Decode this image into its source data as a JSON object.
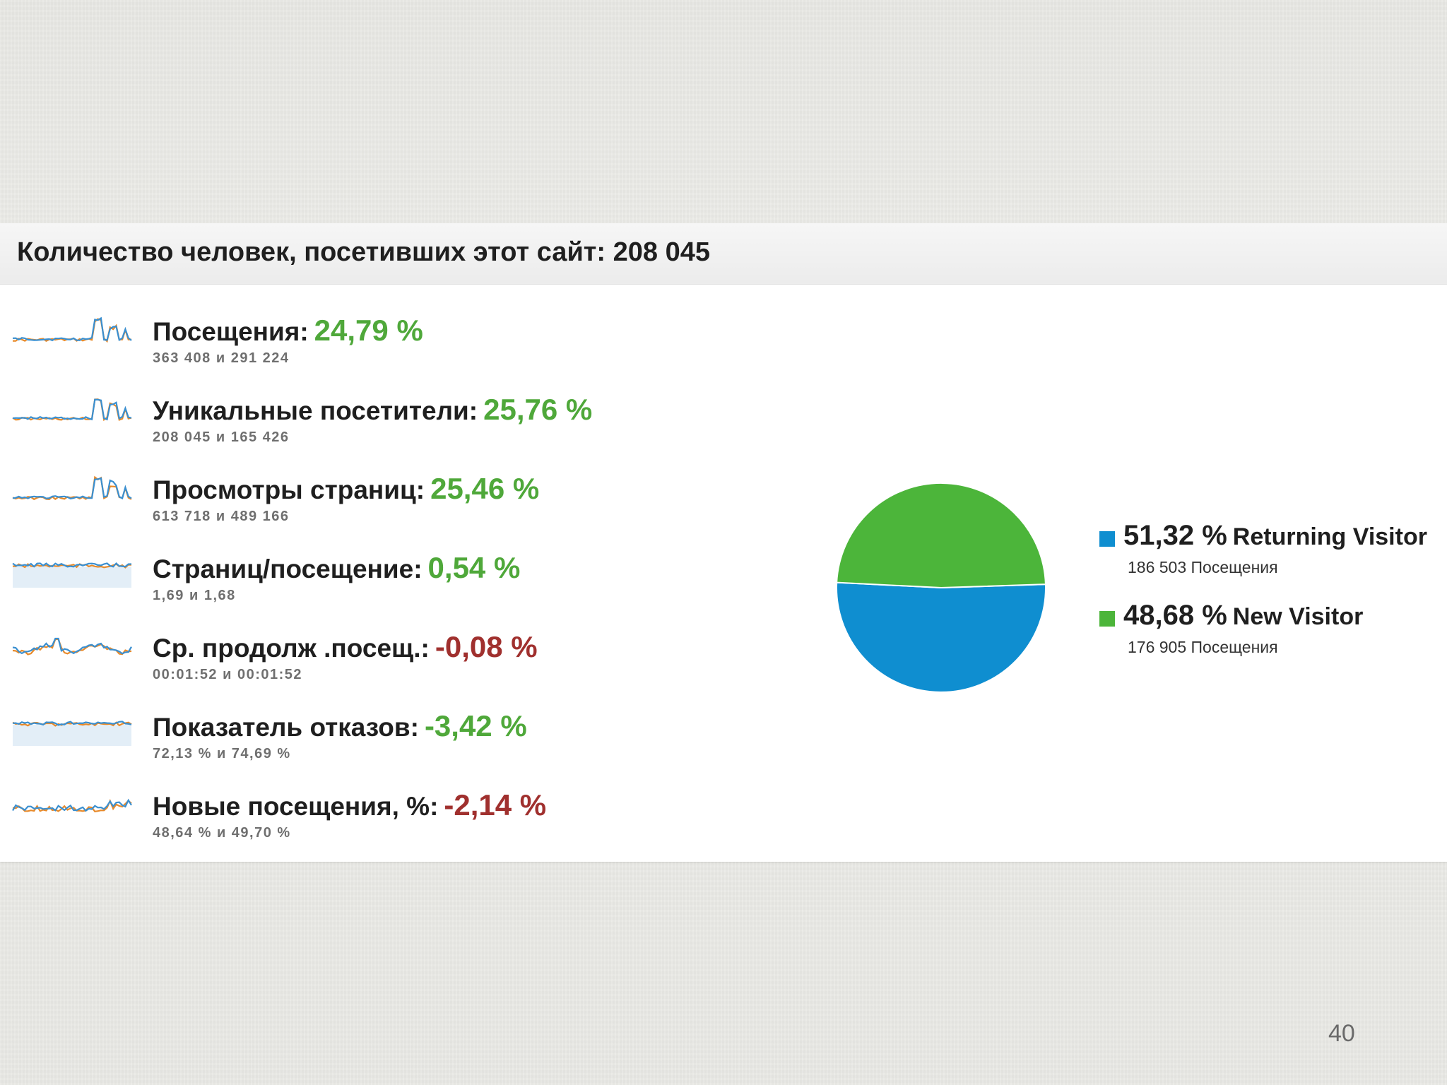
{
  "header": {
    "title": "Количество человек, посетивших этот сайт: 208 045"
  },
  "metrics": [
    {
      "label": "Посещения:",
      "value": "24,79 %",
      "sub": "363 408 и 291 224",
      "trend": "positive",
      "spark": "spiky"
    },
    {
      "label": "Уникальные посетители:",
      "value": "25,76 %",
      "sub": "208 045 и 165 426",
      "trend": "positive",
      "spark": "spiky"
    },
    {
      "label": "Просмотры страниц:",
      "value": "25,46 %",
      "sub": "613 718 и 489 166",
      "trend": "positive",
      "spark": "spiky"
    },
    {
      "label": "Страниц/посещение:",
      "value": "0,54 %",
      "sub": "1,69 и 1,68",
      "trend": "positive",
      "spark": "flat"
    },
    {
      "label": "Ср. продолж .посещ.:",
      "value": "-0,08 %",
      "sub": "00:01:52 и 00:01:52",
      "trend": "negative",
      "spark": "wavy"
    },
    {
      "label": "Показатель отказов:",
      "value": "-3,42 %",
      "sub": "72,13 % и 74,69 %",
      "trend": "positive",
      "spark": "flat"
    },
    {
      "label": "Новые посещения, %:",
      "value": "-2,14 %",
      "sub": "48,64 % и 49,70 %",
      "trend": "negative",
      "spark": "noisy"
    }
  ],
  "legend": [
    {
      "percent": "51,32 %",
      "name": "Returning Visitor",
      "sub": "186 503 Посещения",
      "color": "#0f8ed0"
    },
    {
      "percent": "48,68 %",
      "name": "New Visitor",
      "sub": "176 905 Посещения",
      "color": "#4cb53a"
    }
  ],
  "chart_data": {
    "type": "pie",
    "labels": [
      "Returning Visitor",
      "New Visitor"
    ],
    "values": [
      51.32,
      48.68
    ],
    "visits": [
      186503,
      176905
    ],
    "colors": [
      "#0f8ed0",
      "#4cb53a"
    ]
  },
  "colors": {
    "positive": "#4fa83a",
    "negative": "#a0302e",
    "spark_blue": "#3a8fd0",
    "spark_orange": "#e88a2a"
  },
  "page_number": "40"
}
